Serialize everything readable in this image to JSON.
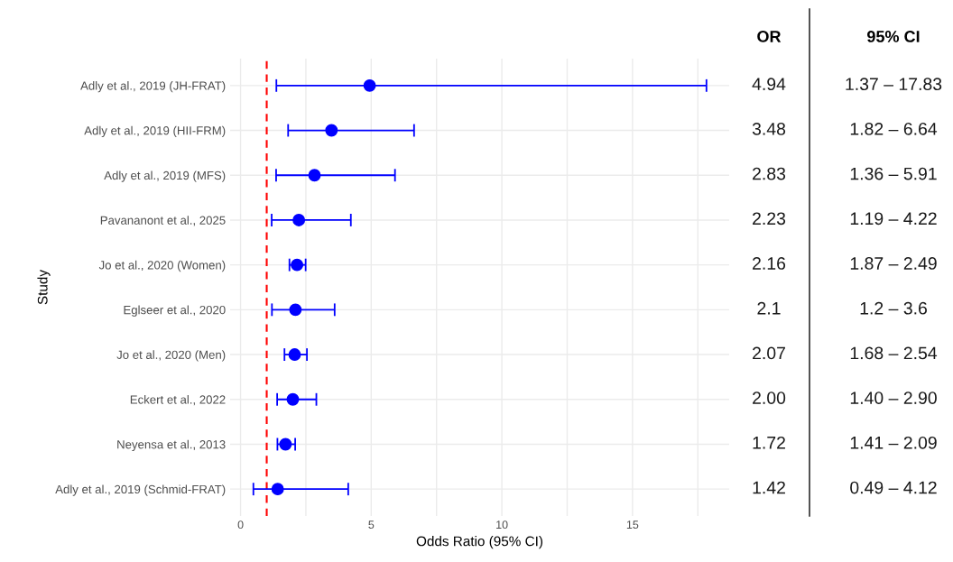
{
  "chart_data": {
    "type": "scatter",
    "orientation": "horizontal",
    "xlabel": "Odds Ratio (95% CI)",
    "ylabel": "Study",
    "categories": [
      "Adly et al., 2019 (JH-FRAT)",
      "Adly et al., 2019 (HII-FRM)",
      "Adly et al., 2019 (MFS)",
      "Pavananont et al., 2025",
      "Jo et al., 2020 (Women)",
      "Eglseer et al., 2020",
      "Jo et al., 2020 (Men)",
      "Eckert et al., 2022",
      "Neyensa et al., 2013",
      "Adly et al., 2019 (Schmid-FRAT)"
    ],
    "series": [
      {
        "color": "#0000ff",
        "values": [
          4.94,
          3.48,
          2.83,
          2.23,
          2.16,
          2.1,
          2.07,
          2.0,
          1.72,
          1.42
        ],
        "errors": [
          [
            1.37,
            17.83
          ],
          [
            1.82,
            6.64
          ],
          [
            1.36,
            5.91
          ],
          [
            1.19,
            4.22
          ],
          [
            1.87,
            2.49
          ],
          [
            1.2,
            3.6
          ],
          [
            1.68,
            2.54
          ],
          [
            1.4,
            2.9
          ],
          [
            1.41,
            2.09
          ],
          [
            0.49,
            4.12
          ]
        ],
        "value_labels": [
          "4.94",
          "3.48",
          "2.83",
          "2.23",
          "2.16",
          "2.1",
          "2.07",
          "2.00",
          "1.72",
          "1.42"
        ]
      }
    ],
    "marker": "circle",
    "xlim": [
      -0.4,
      18.7
    ],
    "xticks": [
      0,
      {
        "value": 2.5,
        "label": null
      },
      5,
      {
        "value": 7.5,
        "label": null
      },
      10,
      {
        "value": 12.5,
        "label": null
      },
      15,
      {
        "value": 17.5,
        "label": null
      }
    ],
    "grid": true,
    "ref_lines": [
      {
        "axis": "x",
        "value": 1,
        "color": "#ff0000",
        "line_style": "dashed"
      }
    ],
    "annotations": [
      "OR",
      "95% CI",
      "1.37 – 17.83",
      "1.82 – 6.64",
      "1.36 – 5.91",
      "1.19 – 4.22",
      "1.87 – 2.49",
      "1.2 – 3.6",
      "1.68 – 2.54",
      "1.40 – 2.90",
      "1.41 – 2.09",
      "0.49 – 4.12"
    ]
  }
}
